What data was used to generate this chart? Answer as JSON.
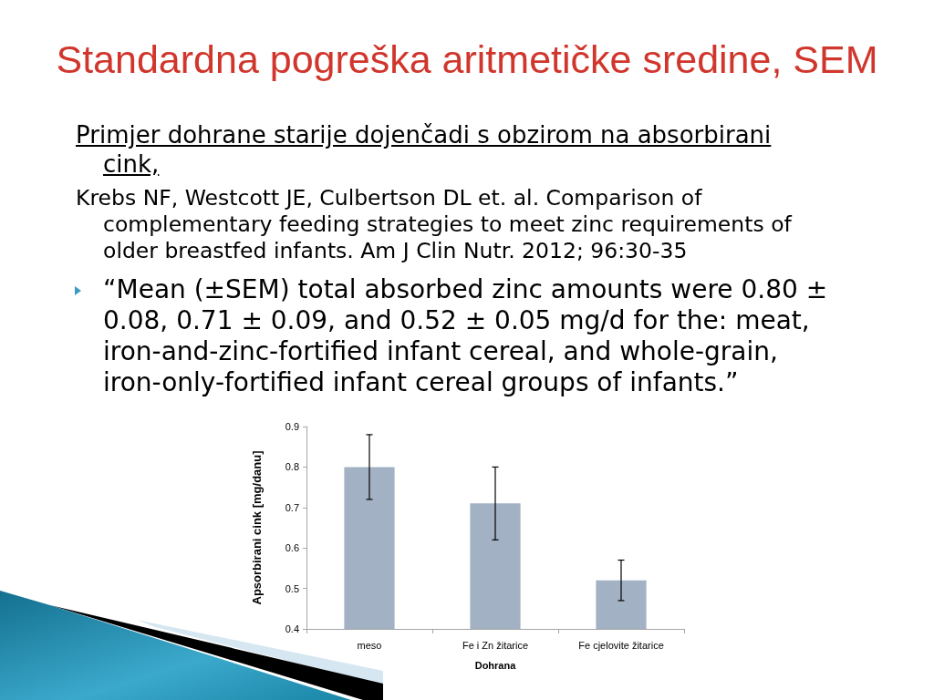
{
  "chart_data": {
    "type": "bar",
    "title": "Standardna pogreška aritmetičke sredine, SEM",
    "subtitle": "Primjer dohrane starije dojenčadi s obzirom na absorbirani cink,",
    "annotations": [
      "Krebs NF, Westcott JE, Culbertson DL et. al. Comparison of complementary feeding strategies to meet zinc requirements of older breastfed infants. Am J Clin Nutr. 2012; 96:30-35",
      "“Mean (±SEM) total absorbed zinc amounts were 0.80 ± 0.08, 0.71 ± 0.09, and 0.52 ± 0.05 mg/d for the: meat, iron-and-zinc-fortified infant cereal, and whole-grain, iron-only-fortified infant cereal groups of infants.”"
    ],
    "xlabel": "Dohrana",
    "ylabel": "Apsorbirani cink [mg/danu]",
    "categories": [
      "meso",
      "Fe i Zn žitarice",
      "Fe cjelovite žitarice"
    ],
    "values": [
      0.8,
      0.71,
      0.52
    ],
    "errors": [
      0.08,
      0.09,
      0.05
    ],
    "color": "#a3b1c4",
    "ylim": [
      0.4,
      0.9
    ],
    "yticks": [
      0.4,
      0.5,
      0.6,
      0.7,
      0.8,
      0.9
    ]
  }
}
